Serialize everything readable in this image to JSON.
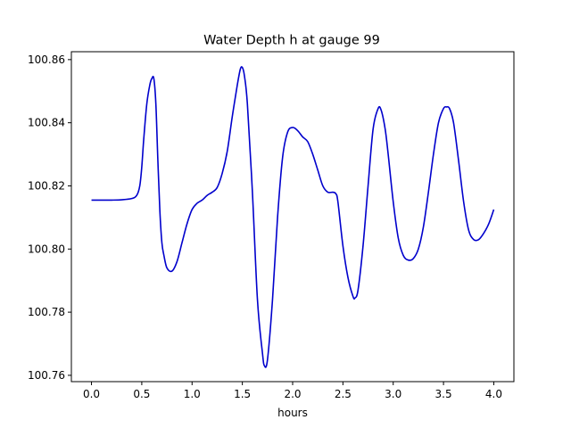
{
  "chart_data": {
    "type": "line",
    "title": "Water Depth h at gauge 99",
    "xlabel": "hours",
    "ylabel": "",
    "xlim": [
      -0.2,
      4.2
    ],
    "ylim": [
      100.758,
      100.8625
    ],
    "xticks": [
      0.0,
      0.5,
      1.0,
      1.5,
      2.0,
      2.5,
      3.0,
      3.5,
      4.0
    ],
    "xtick_labels": [
      "0.0",
      "0.5",
      "1.0",
      "1.5",
      "2.0",
      "2.5",
      "3.0",
      "3.5",
      "4.0"
    ],
    "yticks": [
      100.76,
      100.78,
      100.8,
      100.82,
      100.84,
      100.86
    ],
    "ytick_labels": [
      "100.76",
      "100.78",
      "100.80",
      "100.82",
      "100.84",
      "100.86"
    ],
    "grid": false,
    "series": [
      {
        "color": "#0000cc",
        "x": [
          0.0,
          0.1,
          0.2,
          0.3,
          0.4,
          0.45,
          0.48,
          0.5,
          0.52,
          0.55,
          0.58,
          0.6,
          0.62,
          0.64,
          0.66,
          0.68,
          0.7,
          0.72,
          0.75,
          0.8,
          0.85,
          0.9,
          0.95,
          1.0,
          1.05,
          1.1,
          1.15,
          1.2,
          1.25,
          1.3,
          1.35,
          1.4,
          1.45,
          1.48,
          1.5,
          1.52,
          1.55,
          1.6,
          1.65,
          1.7,
          1.72,
          1.75,
          1.8,
          1.85,
          1.9,
          1.95,
          2.0,
          2.05,
          2.1,
          2.15,
          2.2,
          2.25,
          2.3,
          2.35,
          2.4,
          2.43,
          2.45,
          2.5,
          2.55,
          2.6,
          2.62,
          2.65,
          2.7,
          2.75,
          2.8,
          2.85,
          2.88,
          2.92,
          2.95,
          3.0,
          3.05,
          3.1,
          3.15,
          3.2,
          3.25,
          3.3,
          3.35,
          3.4,
          3.45,
          3.5,
          3.53,
          3.56,
          3.6,
          3.65,
          3.7,
          3.75,
          3.8,
          3.85,
          3.9,
          3.95,
          4.0
        ],
        "y": [
          100.8155,
          100.8155,
          100.8155,
          100.8156,
          100.816,
          100.817,
          100.82,
          100.826,
          100.835,
          100.846,
          100.852,
          100.854,
          100.854,
          100.846,
          100.828,
          100.812,
          100.802,
          100.798,
          100.794,
          100.793,
          100.796,
          100.802,
          100.808,
          100.8125,
          100.8145,
          100.8155,
          100.817,
          100.818,
          100.8195,
          100.824,
          100.831,
          100.842,
          100.852,
          100.857,
          100.8575,
          100.855,
          100.846,
          100.818,
          100.784,
          100.767,
          100.763,
          100.765,
          100.784,
          100.81,
          100.829,
          100.837,
          100.8385,
          100.8375,
          100.8355,
          100.834,
          100.83,
          100.825,
          100.82,
          100.818,
          100.818,
          100.8175,
          100.815,
          100.801,
          100.791,
          100.785,
          100.7845,
          100.787,
          100.801,
          100.82,
          100.838,
          100.8445,
          100.844,
          100.838,
          100.83,
          100.815,
          100.8035,
          100.798,
          100.7965,
          100.797,
          100.8,
          100.807,
          100.818,
          100.83,
          100.84,
          100.8445,
          100.845,
          100.8445,
          100.84,
          100.828,
          100.815,
          100.806,
          100.803,
          100.803,
          100.805,
          100.808,
          100.8125
        ]
      }
    ]
  }
}
